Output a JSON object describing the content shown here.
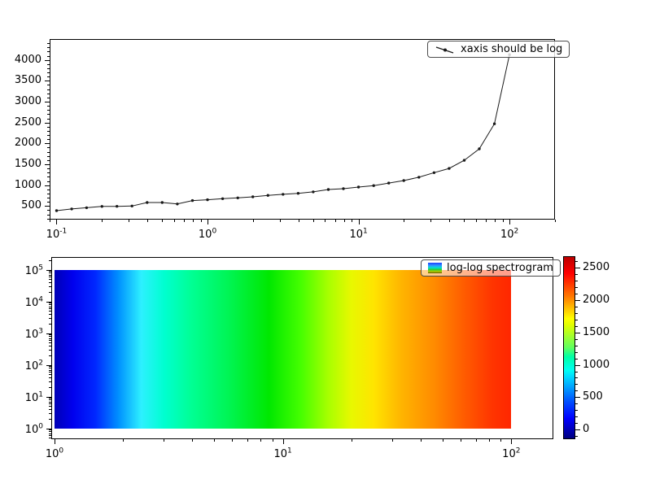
{
  "colors": {
    "background": "#ffffff",
    "axes_edge": "#000000",
    "tick": "#000000"
  },
  "chart_data": [
    {
      "type": "line",
      "title": "",
      "legend_label": "xaxis should be log",
      "x_scale": "log",
      "y_scale": "linear",
      "xlim": [
        0.09,
        200
      ],
      "ylim": [
        175,
        4500
      ],
      "x_tick_exps": [
        -1,
        0,
        1,
        2
      ],
      "y_ticks": [
        500,
        1000,
        1500,
        2000,
        2500,
        3000,
        3500,
        4000
      ],
      "y_minor_step": 100,
      "line_color": "#1a1a1a",
      "marker": "point",
      "x": [
        0.1,
        0.126,
        0.158,
        0.2,
        0.251,
        0.316,
        0.398,
        0.501,
        0.631,
        0.794,
        1.0,
        1.259,
        1.585,
        1.995,
        2.512,
        3.162,
        3.981,
        5.012,
        6.31,
        7.943,
        10.0,
        12.59,
        15.85,
        19.95,
        25.12,
        31.62,
        39.81,
        50.12,
        63.1,
        79.43,
        100.0
      ],
      "y": [
        390,
        430,
        460,
        490,
        492,
        500,
        585,
        585,
        550,
        630,
        650,
        675,
        695,
        720,
        755,
        780,
        805,
        840,
        895,
        915,
        955,
        990,
        1050,
        1110,
        1190,
        1300,
        1400,
        1595,
        1870,
        2470,
        4125
      ]
    },
    {
      "type": "heatmap",
      "title": "",
      "legend_label": "log-log spectrogram",
      "x_scale": "log",
      "y_scale": "log",
      "xlim": [
        0.968,
        152.8
      ],
      "ylim": [
        0.456,
        252700
      ],
      "x_tick_exps": [
        0,
        1,
        2
      ],
      "y_tick_exps": [
        0,
        1,
        2,
        3,
        4,
        5
      ],
      "quad_x_range": [
        1,
        100
      ],
      "quad_y_range": [
        1,
        100000
      ],
      "gradient_stops": [
        {
          "pos": 0.0,
          "color": "#0000b6"
        },
        {
          "pos": 0.04,
          "color": "#0000ee"
        },
        {
          "pos": 0.09,
          "color": "#0028ff"
        },
        {
          "pos": 0.14,
          "color": "#0090ff"
        },
        {
          "pos": 0.19,
          "color": "#2df0ff"
        },
        {
          "pos": 0.24,
          "color": "#00ffd0"
        },
        {
          "pos": 0.3,
          "color": "#00ff94"
        },
        {
          "pos": 0.38,
          "color": "#00f555"
        },
        {
          "pos": 0.47,
          "color": "#00e800"
        },
        {
          "pos": 0.54,
          "color": "#46ff00"
        },
        {
          "pos": 0.6,
          "color": "#a8ff00"
        },
        {
          "pos": 0.65,
          "color": "#e8f800"
        },
        {
          "pos": 0.7,
          "color": "#ffe400"
        },
        {
          "pos": 0.76,
          "color": "#ffb400"
        },
        {
          "pos": 0.83,
          "color": "#ff8c00"
        },
        {
          "pos": 0.9,
          "color": "#ff5a00"
        },
        {
          "pos": 0.96,
          "color": "#ff3400"
        },
        {
          "pos": 1.0,
          "color": "#ff2600"
        }
      ],
      "colorbar": {
        "range": [
          -150,
          2680
        ],
        "ticks": [
          0,
          500,
          1000,
          1500,
          2000,
          2500
        ],
        "minor_step": 100,
        "colormap": "jet",
        "stops": [
          {
            "pos": 0.0,
            "color": "#000080"
          },
          {
            "pos": 0.11,
            "color": "#0000ff"
          },
          {
            "pos": 0.2,
            "color": "#004dff"
          },
          {
            "pos": 0.34,
            "color": "#00dbff"
          },
          {
            "pos": 0.375,
            "color": "#00fff3"
          },
          {
            "pos": 0.45,
            "color": "#00ffa5"
          },
          {
            "pos": 0.5,
            "color": "#60ff60"
          },
          {
            "pos": 0.625,
            "color": "#e2ff00"
          },
          {
            "pos": 0.66,
            "color": "#ffff00"
          },
          {
            "pos": 0.78,
            "color": "#ff7b00"
          },
          {
            "pos": 0.91,
            "color": "#ff0000"
          },
          {
            "pos": 1.0,
            "color": "#bb0000"
          }
        ]
      }
    }
  ]
}
